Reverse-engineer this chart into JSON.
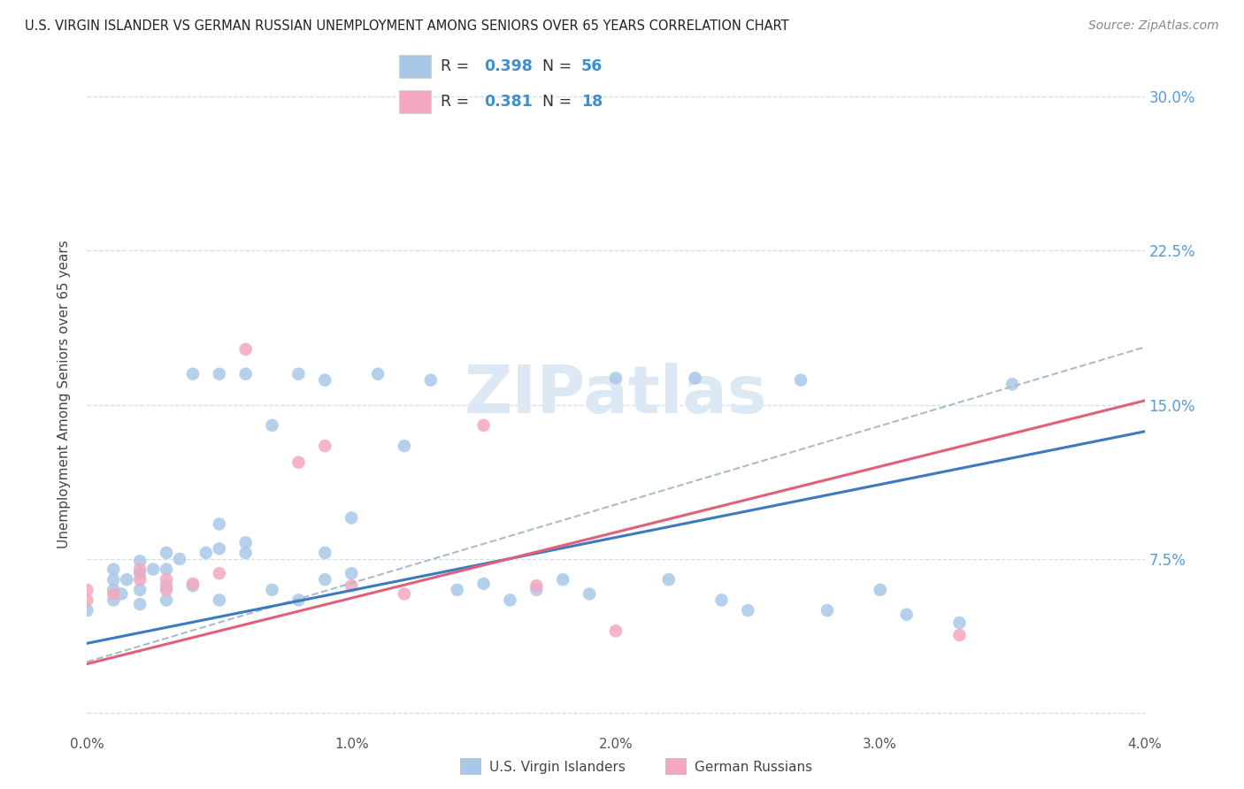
{
  "title": "U.S. VIRGIN ISLANDER VS GERMAN RUSSIAN UNEMPLOYMENT AMONG SENIORS OVER 65 YEARS CORRELATION CHART",
  "source": "Source: ZipAtlas.com",
  "ylabel": "Unemployment Among Seniors over 65 years",
  "xlim": [
    0.0,
    0.04
  ],
  "ylim": [
    -0.01,
    0.32
  ],
  "xtick_vals": [
    0.0,
    0.01,
    0.02,
    0.03,
    0.04
  ],
  "xtick_labels": [
    "0.0%",
    "1.0%",
    "2.0%",
    "3.0%",
    "4.0%"
  ],
  "ytick_vals": [
    0.0,
    0.075,
    0.15,
    0.225,
    0.3
  ],
  "ytick_labels": [
    "",
    "7.5%",
    "15.0%",
    "22.5%",
    "30.0%"
  ],
  "blue_color": "#a8c8e8",
  "pink_color": "#f4a8c0",
  "blue_line_color": "#3a7abf",
  "pink_line_color": "#e0607a",
  "dashed_line_color": "#aabbcc",
  "watermark_color": "#dde8f5",
  "legend_r_color": "#3a90d0",
  "legend_n_color": "#3a90d0",
  "background_color": "#ffffff",
  "grid_color": "#d5dde8",
  "blue_x": [
    0.0,
    0.001,
    0.001,
    0.001,
    0.001,
    0.0013,
    0.0015,
    0.002,
    0.002,
    0.002,
    0.002,
    0.0025,
    0.003,
    0.003,
    0.003,
    0.003,
    0.0035,
    0.004,
    0.004,
    0.0045,
    0.005,
    0.005,
    0.005,
    0.005,
    0.006,
    0.006,
    0.006,
    0.007,
    0.007,
    0.008,
    0.008,
    0.009,
    0.009,
    0.009,
    0.01,
    0.01,
    0.011,
    0.012,
    0.013,
    0.014,
    0.015,
    0.016,
    0.017,
    0.018,
    0.019,
    0.02,
    0.022,
    0.023,
    0.024,
    0.025,
    0.027,
    0.028,
    0.03,
    0.031,
    0.033,
    0.035
  ],
  "blue_y": [
    0.05,
    0.055,
    0.06,
    0.065,
    0.07,
    0.058,
    0.065,
    0.053,
    0.06,
    0.068,
    0.074,
    0.07,
    0.055,
    0.062,
    0.07,
    0.078,
    0.075,
    0.062,
    0.165,
    0.078,
    0.055,
    0.08,
    0.092,
    0.165,
    0.078,
    0.083,
    0.165,
    0.06,
    0.14,
    0.055,
    0.165,
    0.065,
    0.078,
    0.162,
    0.068,
    0.095,
    0.165,
    0.13,
    0.162,
    0.06,
    0.063,
    0.055,
    0.06,
    0.065,
    0.058,
    0.163,
    0.065,
    0.163,
    0.055,
    0.05,
    0.162,
    0.05,
    0.06,
    0.048,
    0.044,
    0.16
  ],
  "pink_x": [
    0.0,
    0.0,
    0.001,
    0.002,
    0.002,
    0.003,
    0.003,
    0.004,
    0.005,
    0.006,
    0.008,
    0.009,
    0.01,
    0.012,
    0.015,
    0.017,
    0.02,
    0.033
  ],
  "pink_y": [
    0.055,
    0.06,
    0.058,
    0.065,
    0.07,
    0.06,
    0.065,
    0.063,
    0.068,
    0.177,
    0.122,
    0.13,
    0.062,
    0.058,
    0.14,
    0.062,
    0.04,
    0.038
  ],
  "blue_trend": [
    0.034,
    0.137
  ],
  "pink_trend": [
    0.024,
    0.152
  ],
  "dashed_trend": [
    0.025,
    0.178
  ],
  "legend_labels": [
    "U.S. Virgin Islanders",
    "German Russians"
  ]
}
